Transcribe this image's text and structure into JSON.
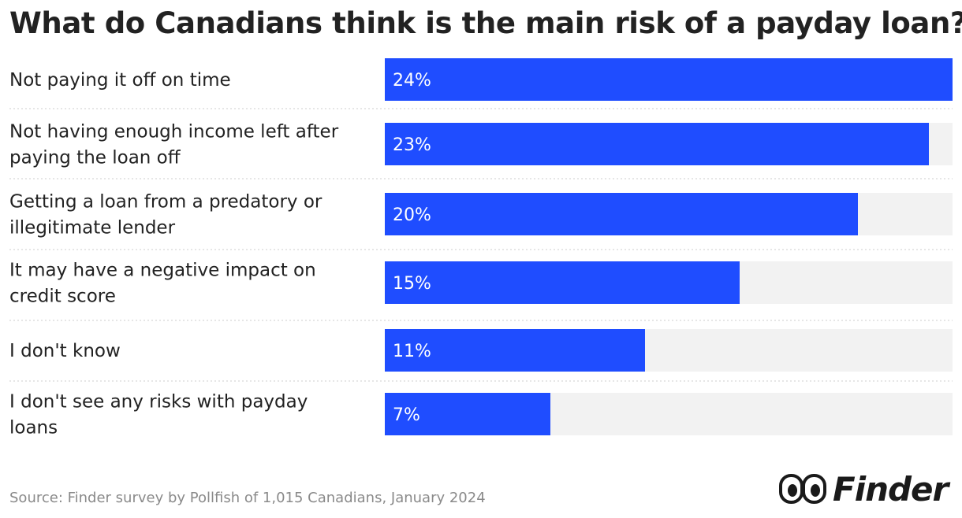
{
  "title": "What do Canadians think is the main risk of a payday loan?",
  "source": "Source: Finder survey by Pollfish of 1,015 Canadians, January 2024",
  "logo": {
    "brand_name": "Finder",
    "icon": "eyes-logo-icon"
  },
  "colors": {
    "bar": "#1f4dff",
    "track": "#f2f2f2",
    "divider": "#cccccc",
    "text": "#222222",
    "source": "#8a8a8a"
  },
  "chart_data": {
    "type": "bar",
    "orientation": "horizontal",
    "title": "What do Canadians think is the main risk of a payday loan?",
    "categories": [
      "Not paying it off on time",
      "Not having enough income left after paying the loan off",
      "Getting a loan from a predatory or illegitimate lender",
      "It may have a negative impact on credit score",
      "I don't know",
      "I don't see any risks with payday loans"
    ],
    "category_lines": [
      [
        "Not paying it off on time"
      ],
      [
        "Not having enough income left after",
        "paying the loan off"
      ],
      [
        "Getting a loan from a predatory or",
        "illegitimate lender"
      ],
      [
        "It may have a negative impact on",
        "credit score"
      ],
      [
        "I don't know"
      ],
      [
        "I don't see any risks with payday",
        "loans"
      ]
    ],
    "values": [
      24,
      23,
      20,
      15,
      11,
      7
    ],
    "value_labels": [
      "24%",
      "23%",
      "20%",
      "15%",
      "11%",
      "7%"
    ],
    "unit": "%",
    "xlim": [
      0,
      24
    ],
    "xlabel": "",
    "ylabel": "",
    "grid": false,
    "legend": "none"
  }
}
